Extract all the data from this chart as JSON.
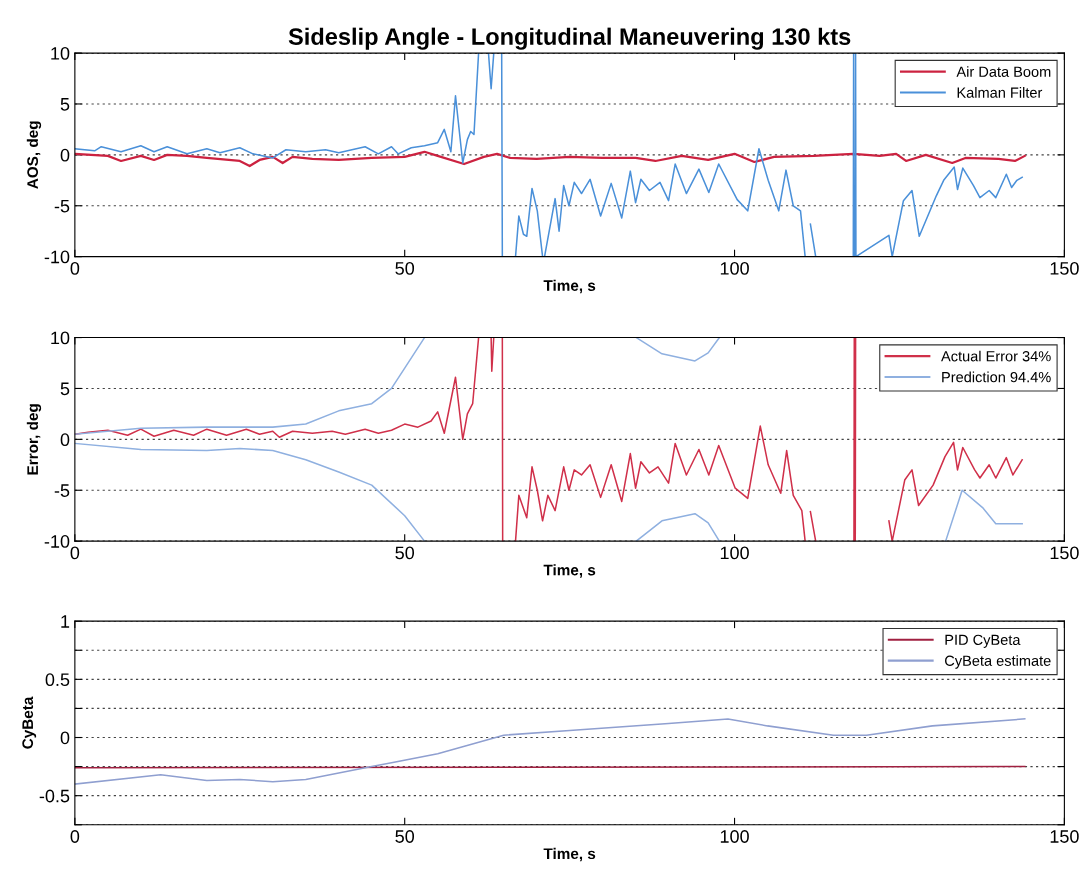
{
  "chart_data": [
    {
      "type": "line",
      "title": "Sideslip Angle - Longitudinal Maneuvering 130 kts",
      "xlabel": "Time, s",
      "ylabel": "AOS, deg",
      "xlim": [
        0,
        150
      ],
      "xticks": [
        0,
        50,
        100,
        150
      ],
      "ylim": [
        -10,
        10
      ],
      "yticks": [
        -10,
        -5,
        0,
        5,
        10
      ],
      "grid": "y",
      "legend": "top right",
      "series": [
        {
          "name": "Air Data Boom",
          "color": "#cc2240",
          "x": [
            0,
            5,
            7,
            10,
            12,
            14,
            17,
            20,
            25,
            26.5,
            28,
            30,
            31.5,
            33,
            36,
            40,
            45,
            50,
            53,
            55,
            59,
            62,
            64,
            66,
            70,
            75,
            80,
            85,
            88,
            92,
            96,
            100,
            103,
            106,
            112,
            118,
            122,
            124.5,
            126,
            129,
            133,
            135,
            140,
            142.5,
            144
          ],
          "values": [
            0.1,
            -0.1,
            -0.6,
            -0.1,
            -0.5,
            0,
            -0.1,
            -0.3,
            -0.6,
            -1.1,
            -0.5,
            -0.2,
            -0.8,
            -0.2,
            -0.4,
            -0.5,
            -0.3,
            -0.2,
            0.3,
            -0.1,
            -0.9,
            -0.2,
            0.1,
            -0.3,
            -0.4,
            -0.2,
            -0.3,
            -0.3,
            -0.6,
            -0.1,
            -0.5,
            0.1,
            -0.7,
            -0.2,
            -0.1,
            0.1,
            -0.1,
            0.1,
            -0.6,
            0,
            -0.8,
            -0.3,
            -0.4,
            -0.6,
            -0.1
          ]
        },
        {
          "name": "Kalman Filter",
          "color": "#4a90d9",
          "x": [
            0,
            3,
            4,
            7,
            10,
            12,
            14,
            17,
            20,
            22,
            25,
            27,
            30,
            32,
            35,
            38,
            40,
            42,
            44,
            46,
            48,
            49,
            51,
            53,
            55,
            56,
            57,
            57.7,
            58.8,
            59.5,
            60,
            60.5,
            61.2,
            61.3,
            62.7,
            63.1,
            63.5,
            63.6,
            64.7,
            64.8,
            64.9,
            66.8,
            67.3,
            68,
            68.5,
            69.3,
            70.1,
            70.9,
            71,
            71.2,
            72.8,
            73.4,
            74.1,
            74.9,
            75.7,
            76.8,
            78.1,
            79.7,
            81.3,
            82.9,
            84.2,
            85,
            85.8,
            87.1,
            88.7,
            90,
            91,
            92.7,
            94.6,
            96.1,
            97.6,
            100.4,
            102,
            103.7,
            105.1,
            106.7,
            107.8,
            108.9,
            110,
            110.7,
            110.8,
            111.5,
            112.3,
            112.4,
            118,
            118.05,
            118.1,
            118.2,
            118.3,
            118.35,
            118.4,
            123.4,
            123.9,
            125.6,
            126.9,
            128,
            130.6,
            131.7,
            133.3,
            133.8,
            134.6,
            136.2,
            137.2,
            138.6,
            139.6,
            141.2,
            142,
            142.8,
            143.6
          ],
          "values": [
            0.6,
            0.4,
            0.8,
            0.3,
            0.9,
            0.3,
            0.8,
            0.1,
            0.6,
            0.2,
            0.7,
            0.1,
            -0.3,
            0.5,
            0.3,
            0.5,
            0.2,
            0.5,
            0.8,
            0.1,
            0.8,
            0.1,
            0.7,
            0.9,
            1.2,
            2.5,
            0.3,
            5.8,
            -0.8,
            1.5,
            2.3,
            2,
            10,
            null,
            10,
            6.5,
            10,
            null,
            10,
            -10,
            null,
            -10,
            -6,
            -7.8,
            -8,
            -3.3,
            -5.5,
            -10,
            null,
            -10,
            -4.3,
            -7.5,
            -3,
            -5,
            -2.7,
            -3.8,
            -2.4,
            -6,
            -2.8,
            -6.2,
            -1.6,
            -4.7,
            -2.4,
            -3.5,
            -2.7,
            -4.5,
            -0.9,
            -3.8,
            -1.4,
            -3.7,
            -0.9,
            -4.4,
            -5.5,
            0.6,
            -2.5,
            -5.5,
            -1.5,
            -5,
            -5.5,
            -10,
            null,
            -6.8,
            -10,
            null,
            -10,
            10,
            -10,
            null,
            -10,
            10,
            -10,
            -7.9,
            -10,
            -4.5,
            -3.5,
            -8,
            -4,
            -2.5,
            -1.2,
            -3.4,
            -1.3,
            -3,
            -4.2,
            -3.5,
            -4.2,
            -1.9,
            -3.2,
            -2.5,
            -2.2
          ]
        }
      ]
    },
    {
      "type": "line",
      "xlabel": "Time, s",
      "ylabel": "Error, deg",
      "xlim": [
        0,
        150
      ],
      "xticks": [
        0,
        50,
        100,
        150
      ],
      "ylim": [
        -10,
        10
      ],
      "yticks": [
        -10,
        -5,
        0,
        5,
        10
      ],
      "grid": "y",
      "legend": "top right",
      "series": [
        {
          "name": "Actual Error 34%",
          "color": "#d0304a",
          "x": [
            0,
            2,
            5,
            8,
            10,
            12,
            15,
            18,
            20,
            23,
            26,
            28,
            30,
            31,
            33,
            36,
            39,
            41,
            44,
            46,
            48,
            50,
            52,
            54,
            55,
            56,
            57.7,
            58.8,
            59.5,
            60.3,
            61.2,
            61.3,
            63.1,
            63.2,
            63.5,
            63.6,
            64.8,
            64.85,
            64.9,
            66.8,
            67.3,
            68.5,
            69.3,
            70.1,
            70.9,
            71.7,
            72.8,
            74.1,
            74.9,
            75.7,
            76.8,
            78.1,
            79.7,
            81.3,
            82.9,
            84.2,
            85,
            85.8,
            87.1,
            88.4,
            90,
            91,
            92.7,
            94.6,
            96.1,
            97.6,
            100.1,
            102,
            103.9,
            105.1,
            107,
            107.9,
            108.9,
            110.2,
            110.7,
            110.8,
            111.5,
            112.3,
            112.4,
            118.1,
            118.15,
            118.2,
            118.3,
            118.35,
            118.4,
            123.4,
            123.9,
            125.8,
            126.9,
            127.9,
            130.1,
            131.9,
            133.2,
            133.8,
            134.6,
            136.4,
            137.2,
            138.6,
            139.6,
            141.2,
            142.2,
            143.6
          ],
          "values": [
            0.5,
            0.7,
            0.9,
            0.4,
            1,
            0.3,
            0.9,
            0.4,
            1,
            0.4,
            1,
            0.5,
            0.8,
            0.2,
            0.8,
            0.6,
            0.8,
            0.5,
            1,
            0.6,
            0.9,
            1.5,
            1.2,
            1.8,
            2.7,
            0.6,
            6.1,
            0,
            2.5,
            3.5,
            10,
            null,
            10,
            6.7,
            10,
            null,
            10,
            -10,
            null,
            -10,
            -5.5,
            -7.7,
            -2.7,
            -5,
            -8,
            -5.5,
            -7,
            -2.7,
            -5,
            -3,
            -3.5,
            -2.5,
            -5.7,
            -2.5,
            -6.1,
            -1.4,
            -4.8,
            -2.2,
            -3.3,
            -2.7,
            -4.3,
            -0.4,
            -3.5,
            -1,
            -3.5,
            -0.6,
            -4.8,
            -5.8,
            1.3,
            -2.5,
            -5.3,
            -1.1,
            -5.5,
            -7,
            -10,
            null,
            -7.1,
            -10,
            null,
            -10,
            10,
            null,
            -10,
            10,
            null,
            -8,
            -10,
            -4,
            -3,
            -6.5,
            -4.5,
            -1.7,
            -0.3,
            -3,
            -0.8,
            -3,
            -3.8,
            -2.5,
            -3.8,
            -1.8,
            -3.5,
            -2
          ]
        },
        {
          "name": "Prediction 94.4%",
          "color": "#8fb0e0",
          "x": [
            0,
            10,
            20,
            30,
            35,
            40,
            45,
            48,
            50,
            53,
            53.1,
            85.1,
            89,
            94,
            96,
            97.7
          ],
          "values": [
            0.5,
            1.1,
            1.2,
            1.2,
            1.5,
            2.8,
            3.5,
            5,
            7,
            10,
            null,
            10,
            8.4,
            7.7,
            8.5,
            10
          ]
        },
        {
          "color": "#8fb0e0",
          "x": [
            0,
            10,
            20,
            25,
            30,
            35,
            40,
            45,
            50,
            53,
            53.1,
            85.1,
            89,
            94,
            96,
            97.7,
            97.8,
            132,
            134.5,
            137.6,
            139.6,
            143.6
          ],
          "values": [
            -0.4,
            -1,
            -1.1,
            -0.9,
            -1.1,
            -2,
            -3.2,
            -4.5,
            -7.5,
            -10,
            null,
            -10,
            -8,
            -7.3,
            -8.2,
            -10,
            null,
            -10,
            -5,
            -6.7,
            -8.3,
            -8.3
          ]
        }
      ]
    },
    {
      "type": "line",
      "xlabel": "Time, s",
      "ylabel": "CyBeta",
      "xlim": [
        0,
        150
      ],
      "xticks": [
        0,
        50,
        100,
        150
      ],
      "ylim": [
        -0.75,
        1
      ],
      "yticks": [
        {
          "value": -0.75,
          "label": null
        },
        -0.5,
        {
          "value": -0.25,
          "label": null
        },
        0,
        {
          "value": 0.25,
          "label": null
        },
        0.5,
        {
          "value": 0.75,
          "label": null
        },
        1
      ],
      "grid": "y",
      "legend": "top right",
      "series": [
        {
          "name": "PID CyBeta",
          "color": "#a02040",
          "x": [
            0,
            144
          ],
          "values": [
            -0.26,
            -0.25
          ]
        },
        {
          "name": "CyBeta estimate",
          "color": "#8f9fd0",
          "x": [
            0,
            13,
            20,
            25,
            30,
            35,
            45,
            55,
            65,
            75,
            90,
            99,
            105,
            115,
            120,
            130,
            144
          ],
          "values": [
            -0.4,
            -0.32,
            -0.37,
            -0.36,
            -0.38,
            -0.36,
            -0.25,
            -0.14,
            0.02,
            0.06,
            0.12,
            0.16,
            0.1,
            0.02,
            0.02,
            0.1,
            0.16
          ]
        }
      ]
    }
  ]
}
